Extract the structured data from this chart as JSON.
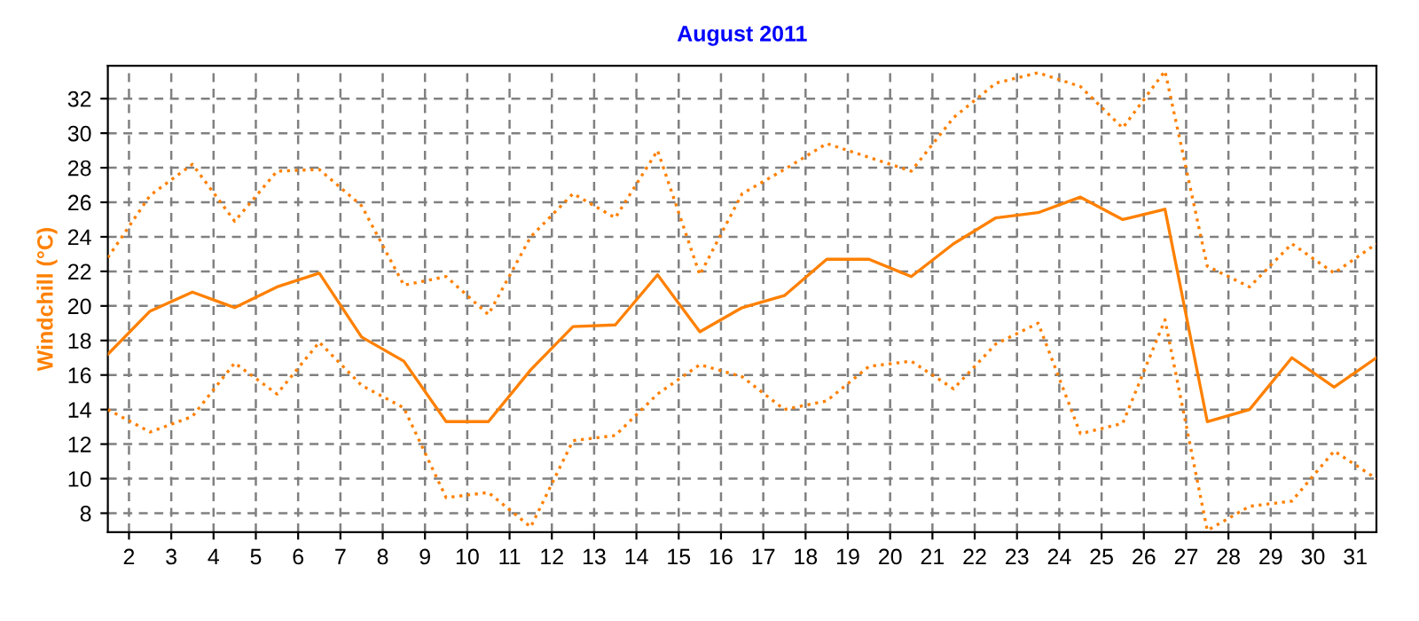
{
  "chart_data": {
    "type": "line",
    "title": "August 2011",
    "ylabel": "Windchill (°C)",
    "x": [
      1.5,
      2.5,
      3.5,
      4.5,
      5.5,
      6.5,
      7.5,
      8.5,
      9.5,
      10.5,
      11.5,
      12.5,
      13.5,
      14.5,
      15.5,
      16.5,
      17.5,
      18.5,
      19.5,
      20.5,
      21.5,
      22.5,
      23.5,
      24.5,
      25.5,
      26.5,
      27.5,
      28.5,
      29.5,
      30.5,
      31.5
    ],
    "series": [
      {
        "color": "#ff8000",
        "line_style": "dotted",
        "values": [
          22.8,
          26.4,
          28.2,
          24.9,
          27.8,
          27.9,
          25.8,
          21.2,
          21.7,
          19.5,
          24.0,
          26.5,
          25.1,
          29.0,
          21.8,
          26.5,
          27.9,
          29.4,
          28.6,
          27.8,
          30.9,
          32.9,
          33.5,
          32.7,
          30.3,
          33.6,
          22.3,
          21.1,
          23.6,
          21.9,
          23.6
        ]
      },
      {
        "color": "#ff8000",
        "line_style": "solid",
        "values": [
          17.2,
          19.7,
          20.8,
          19.9,
          21.1,
          21.9,
          18.2,
          16.8,
          13.3,
          13.3,
          16.3,
          18.8,
          18.9,
          21.8,
          18.5,
          19.9,
          20.6,
          22.7,
          22.7,
          21.7,
          23.6,
          25.1,
          25.4,
          26.3,
          25.0,
          25.6,
          13.3,
          14.0,
          17.0,
          15.3,
          17.0
        ]
      },
      {
        "color": "#ff8000",
        "line_style": "dotted",
        "values": [
          14.0,
          12.7,
          13.6,
          16.7,
          14.9,
          17.9,
          15.4,
          14.1,
          8.9,
          9.2,
          7.2,
          12.2,
          12.5,
          14.9,
          16.6,
          15.9,
          14.0,
          14.5,
          16.5,
          16.8,
          15.2,
          17.8,
          19.0,
          12.6,
          13.2,
          19.2,
          7.0,
          8.4,
          8.7,
          11.6,
          10.0
        ]
      }
    ],
    "xlim": [
      1.5,
      31.5
    ],
    "xticks": [
      2,
      3,
      4,
      5,
      6,
      7,
      8,
      9,
      10,
      11,
      12,
      13,
      14,
      15,
      16,
      17,
      18,
      19,
      20,
      21,
      22,
      23,
      24,
      25,
      26,
      27,
      28,
      29,
      30,
      31
    ],
    "ylim": [
      6.9,
      33.9
    ],
    "yticks": [
      8,
      10,
      12,
      14,
      16,
      18,
      20,
      22,
      24,
      26,
      28,
      30,
      32
    ],
    "grid": true,
    "marker": "none"
  }
}
